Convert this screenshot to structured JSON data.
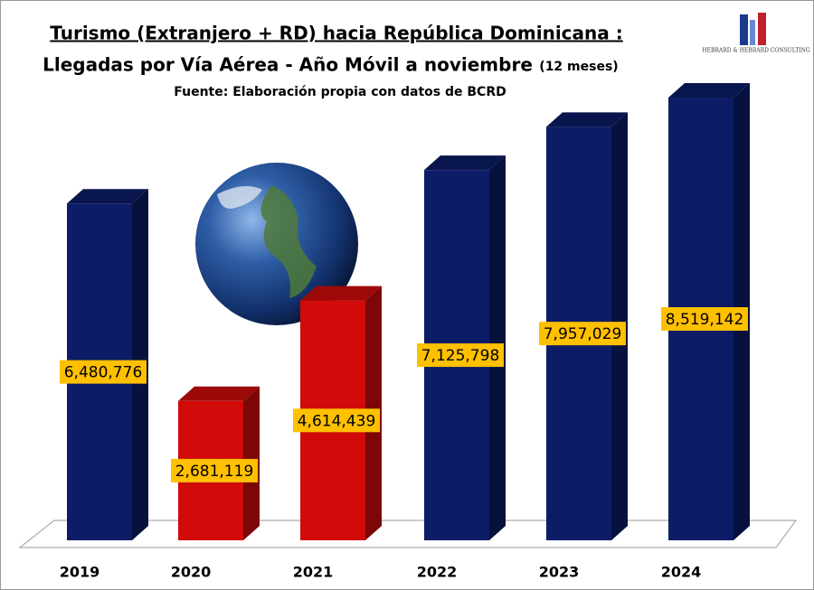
{
  "chart_data": {
    "type": "bar3d",
    "title": "Turismo (Extranjero + RD) hacia República Dominicana :",
    "subtitle": "Llegadas por Vía Aérea - Año Móvil a noviembre",
    "subtitle_note": "(12 meses)",
    "source": "Fuente: Elaboración  propia  con datos de BCRD",
    "logo": "HEBRARD & HEBRARD CONSULTING",
    "categories": [
      "2019",
      "2020",
      "2021",
      "2022",
      "2023",
      "2024"
    ],
    "values": [
      6480776,
      2681119,
      4614439,
      7125798,
      7957029,
      8519142
    ],
    "value_labels": [
      "6,480,776",
      "2,681,119",
      "4,614,439",
      "7,125,798",
      "7,957,029",
      "8,519,142"
    ],
    "colors": [
      "#0c1c66",
      "#d10a0a",
      "#d10a0a",
      "#0c1c66",
      "#0c1c66",
      "#0c1c66"
    ],
    "label_color": "#ffc000"
  }
}
